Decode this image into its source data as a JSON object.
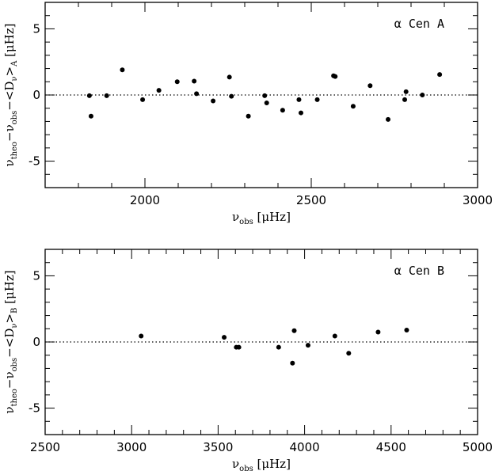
{
  "chart_data": [
    {
      "type": "scatter",
      "panel_label": "α Cen A",
      "xlabel": {
        "pre": "ν",
        "sub": "obs",
        "unit": " [μHz]"
      },
      "ylabel": {
        "nu": "ν",
        "theo": "theo",
        "minus1": "−ν",
        "obs": "obs",
        "minus2": "−<D",
        "dnu": "ν",
        "close": ">",
        "star": "A",
        "unit": " [μHz]"
      },
      "xlim": [
        1700,
        3000
      ],
      "ylim": [
        -7,
        7
      ],
      "xticks_major": [
        2000,
        2500,
        3000
      ],
      "xticks_minor_step": 100,
      "yticks_major": [
        -5,
        0,
        5
      ],
      "yticks_minor_step": 1,
      "reference_line": 0,
      "points": [
        {
          "x": 1833,
          "y": -0.05
        },
        {
          "x": 1838,
          "y": -1.6
        },
        {
          "x": 1885,
          "y": -0.05
        },
        {
          "x": 1932,
          "y": 1.9
        },
        {
          "x": 1993,
          "y": -0.35
        },
        {
          "x": 2042,
          "y": 0.35
        },
        {
          "x": 2097,
          "y": 1.0
        },
        {
          "x": 2148,
          "y": 1.05
        },
        {
          "x": 2155,
          "y": 0.1
        },
        {
          "x": 2205,
          "y": -0.45
        },
        {
          "x": 2254,
          "y": 1.35
        },
        {
          "x": 2260,
          "y": -0.1
        },
        {
          "x": 2311,
          "y": -1.6
        },
        {
          "x": 2360,
          "y": -0.05
        },
        {
          "x": 2366,
          "y": -0.6
        },
        {
          "x": 2414,
          "y": -1.15
        },
        {
          "x": 2463,
          "y": -0.35
        },
        {
          "x": 2469,
          "y": -1.35
        },
        {
          "x": 2518,
          "y": -0.35
        },
        {
          "x": 2567,
          "y": 1.45
        },
        {
          "x": 2572,
          "y": 1.4
        },
        {
          "x": 2626,
          "y": -0.85
        },
        {
          "x": 2677,
          "y": 0.7
        },
        {
          "x": 2731,
          "y": -1.85
        },
        {
          "x": 2781,
          "y": -0.35
        },
        {
          "x": 2785,
          "y": 0.25
        },
        {
          "x": 2834,
          "y": 0.0
        },
        {
          "x": 2886,
          "y": 1.55
        }
      ]
    },
    {
      "type": "scatter",
      "panel_label": "α Cen B",
      "xlabel": {
        "pre": "ν",
        "sub": "obs",
        "unit": " [μHz]"
      },
      "ylabel": {
        "nu": "ν",
        "theo": "theo",
        "minus1": "−ν",
        "obs": "obs",
        "minus2": "−<D",
        "dnu": "ν",
        "close": ">",
        "star": "B",
        "unit": " [μHz]"
      },
      "xlim": [
        2500,
        5000
      ],
      "ylim": [
        -7,
        7
      ],
      "xticks_major": [
        2500,
        3000,
        3500,
        4000,
        4500,
        5000
      ],
      "xticks_minor_step": 100,
      "yticks_major": [
        -5,
        0,
        5
      ],
      "yticks_minor_step": 1,
      "reference_line": 0,
      "points": [
        {
          "x": 3055,
          "y": 0.45
        },
        {
          "x": 3535,
          "y": 0.35
        },
        {
          "x": 3605,
          "y": -0.4
        },
        {
          "x": 3620,
          "y": -0.4
        },
        {
          "x": 3850,
          "y": -0.4
        },
        {
          "x": 3930,
          "y": -1.6
        },
        {
          "x": 3940,
          "y": 0.85
        },
        {
          "x": 4020,
          "y": -0.25
        },
        {
          "x": 4175,
          "y": 0.45
        },
        {
          "x": 4255,
          "y": -0.85
        },
        {
          "x": 4425,
          "y": 0.75
        },
        {
          "x": 4590,
          "y": 0.9
        }
      ]
    }
  ]
}
